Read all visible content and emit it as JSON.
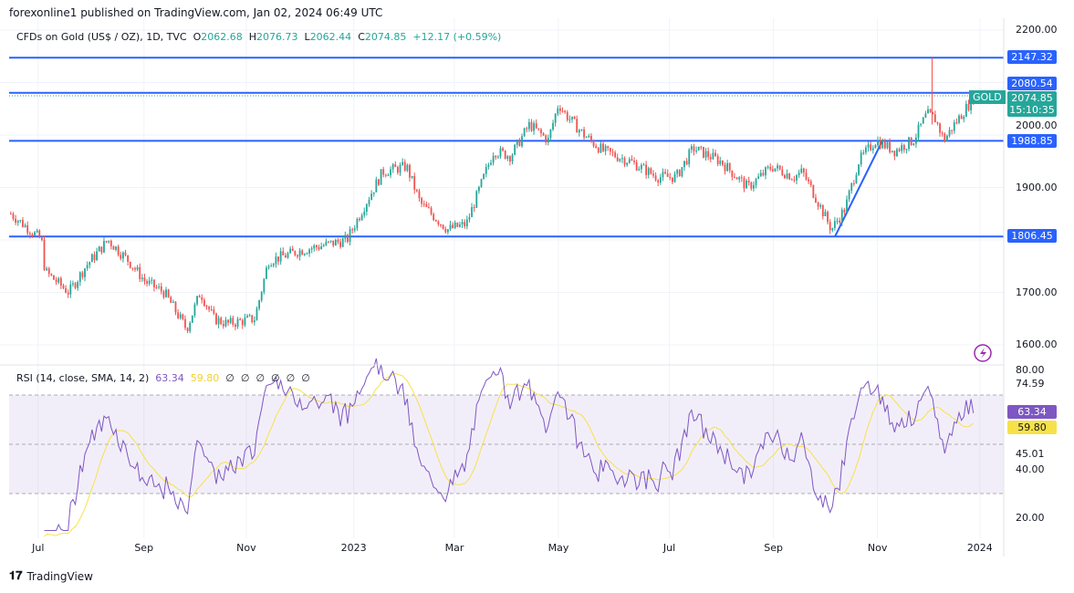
{
  "header": "forexonline1 published on TradingView.com, Jan 02, 2024 06:49 UTC",
  "legend": {
    "symbol": "CFDs on Gold (US$ / OZ), 1D, TVC",
    "o_label": "O",
    "o": "2062.68",
    "h_label": "H",
    "h": "2076.73",
    "l_label": "L",
    "l": "2062.44",
    "c_label": "C",
    "c": "2074.85",
    "change": "+12.17 (+0.59%)"
  },
  "rsi_legend": {
    "title": "RSI (14, close, SMA, 14, 2)",
    "rsi": "63.34",
    "sma": "59.80",
    "empties": [
      "∅",
      "∅",
      "∅",
      "∅",
      "∅",
      "∅"
    ]
  },
  "footer": {
    "brand": "TradingView"
  },
  "colors": {
    "up": "#26a69a",
    "down": "#ef5350",
    "levels": "#2962ff",
    "rsi": "#7e57c2",
    "sma": "#f7e14b"
  },
  "price_tags": {
    "symbol": "GOLD",
    "price": "2074.85",
    "countdown": "15:10:35",
    "rsi": "63.34",
    "sma": "59.80"
  },
  "chart_data": {
    "type": "candlestick",
    "title": "CFDs on Gold (US$ / OZ), 1D",
    "yticks": [
      "2200.00",
      "2000.00",
      "1900.00",
      "1700.00",
      "1600.00"
    ],
    "ylim": [
      1600,
      2200
    ],
    "xticks": [
      {
        "label": "Jul",
        "day": 17
      },
      {
        "label": "Sep",
        "day": 79
      },
      {
        "label": "Nov",
        "day": 139
      },
      {
        "label": "2023",
        "day": 202
      },
      {
        "label": "Mar",
        "day": 261
      },
      {
        "label": "May",
        "day": 322
      },
      {
        "label": "Jul",
        "day": 387
      },
      {
        "label": "Sep",
        "day": 448
      },
      {
        "label": "Nov",
        "day": 509
      },
      {
        "label": "2024",
        "day": 569
      }
    ],
    "xlim_days": [
      0,
      583
    ],
    "levels": [
      {
        "value": 2147.32,
        "label": "2147.32"
      },
      {
        "value": 2080.54,
        "label": "2080.54"
      },
      {
        "value": 1988.85,
        "label": "1988.85"
      },
      {
        "value": 1806.45,
        "label": "1806.45"
      }
    ],
    "trendline": [
      [
        484,
        1806
      ],
      [
        512,
        1990
      ]
    ],
    "approx_close_path": [
      [
        1,
        1850
      ],
      [
        19,
        1800
      ],
      [
        21,
        1740
      ],
      [
        35,
        1700
      ],
      [
        45,
        1750
      ],
      [
        58,
        1800
      ],
      [
        70,
        1760
      ],
      [
        80,
        1720
      ],
      [
        91,
        1700
      ],
      [
        104,
        1630
      ],
      [
        112,
        1700
      ],
      [
        120,
        1650
      ],
      [
        128,
        1640
      ],
      [
        144,
        1650
      ],
      [
        152,
        1760
      ],
      [
        171,
        1780
      ],
      [
        198,
        1800
      ],
      [
        209,
        1870
      ],
      [
        219,
        1930
      ],
      [
        233,
        1940
      ],
      [
        241,
        1870
      ],
      [
        257,
        1820
      ],
      [
        268,
        1830
      ],
      [
        276,
        1900
      ],
      [
        284,
        1970
      ],
      [
        294,
        1960
      ],
      [
        305,
        2020
      ],
      [
        316,
        1990
      ],
      [
        322,
        2060
      ],
      [
        326,
        2040
      ],
      [
        337,
        2000
      ],
      [
        348,
        1970
      ],
      [
        364,
        1950
      ],
      [
        380,
        1920
      ],
      [
        391,
        1920
      ],
      [
        401,
        1975
      ],
      [
        417,
        1950
      ],
      [
        433,
        1900
      ],
      [
        447,
        1940
      ],
      [
        460,
        1920
      ],
      [
        465,
        1930
      ],
      [
        473,
        1880
      ],
      [
        482,
        1820
      ],
      [
        490,
        1860
      ],
      [
        498,
        1950
      ],
      [
        508,
        1990
      ],
      [
        519,
        1970
      ],
      [
        530,
        1990
      ],
      [
        538,
        2040
      ],
      [
        543,
        2030
      ],
      [
        548,
        1990
      ],
      [
        554,
        2020
      ],
      [
        564,
        2065
      ],
      [
        566,
        2075
      ]
    ],
    "rsi": {
      "yticks": [
        "80.00",
        "74.59",
        "45.01",
        "40.00",
        "20.00"
      ],
      "ylim": [
        20,
        80
      ],
      "bands": [
        70,
        50,
        30
      ],
      "last": 63.34,
      "sma_last": 59.8
    }
  }
}
